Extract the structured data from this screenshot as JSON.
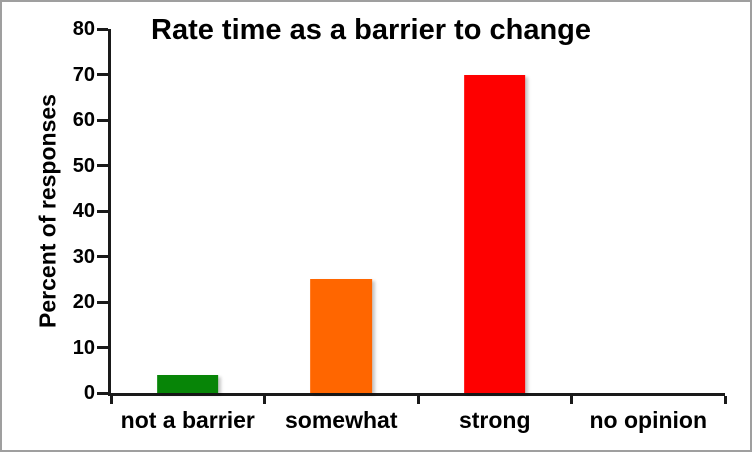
{
  "frame": {
    "border_color": "#9f9f9f",
    "background": "#ffffff"
  },
  "chart_data": {
    "type": "bar",
    "title": "Rate time as a barrier to change",
    "xlabel": "",
    "ylabel": "Percent of responses",
    "categories": [
      "not a barrier",
      "somewhat",
      "strong",
      "no opinion"
    ],
    "values": [
      4,
      25,
      70,
      0
    ],
    "bar_colors": [
      "#078507",
      "#ff6600",
      "#fe0000",
      null
    ],
    "ylim": [
      0,
      80
    ],
    "yticks": [
      0,
      10,
      20,
      30,
      40,
      50,
      60,
      70,
      80
    ],
    "grid": false,
    "legend": "none",
    "bar_width_fraction": 0.402,
    "axis_color": "#1a1a1a"
  }
}
